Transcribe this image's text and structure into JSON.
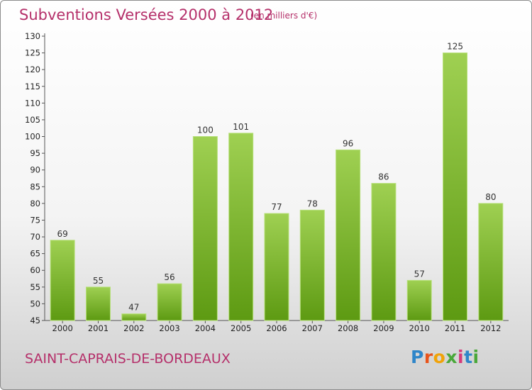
{
  "title": "Subventions Versées 2000 à 2012",
  "subtitle": "(en milliers d'€)",
  "place": "SAINT-CAPRAIS-DE-BORDEAUX",
  "logo": {
    "letters": [
      "P",
      "r",
      "o",
      "x",
      "i",
      "t",
      "i"
    ],
    "colors": [
      "#2f86c9",
      "#e8541b",
      "#f0a30a",
      "#4aa83a",
      "#d63a7a",
      "#2f86c9",
      "#4aa83a"
    ]
  },
  "chart_data": {
    "type": "bar",
    "categories": [
      "2000",
      "2001",
      "2002",
      "2003",
      "2004",
      "2005",
      "2006",
      "2007",
      "2008",
      "2009",
      "2010",
      "2011",
      "2012"
    ],
    "values": [
      69,
      55,
      47,
      56,
      100,
      101,
      77,
      78,
      96,
      86,
      57,
      125,
      80
    ],
    "data_labels": [
      "69",
      "55",
      "47",
      "56",
      "100",
      "101",
      "77",
      "78",
      "96",
      "86",
      "57",
      "125",
      "80"
    ],
    "yticks": [
      "45",
      "50",
      "55",
      "60",
      "65",
      "70",
      "75",
      "80",
      "85",
      "90",
      "95",
      "100",
      "105",
      "110",
      "115",
      "120",
      "125",
      "130"
    ],
    "ylim": [
      45,
      130
    ],
    "grid": false,
    "bar_color": "#7cbd2e"
  }
}
